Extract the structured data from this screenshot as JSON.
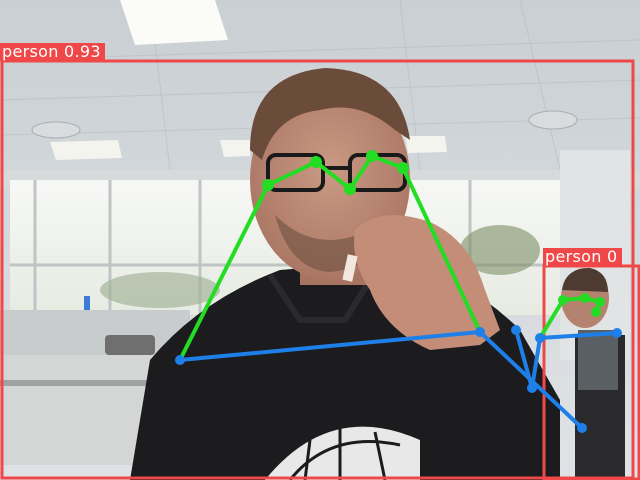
{
  "detections": [
    {
      "label": "person 0.93",
      "box_color": "#f04848",
      "keypoint_color": "#22dd22",
      "skeleton_upper_color": "#22dd22",
      "skeleton_lower_color": "#1f7fe8"
    },
    {
      "label": "person 0",
      "box_color": "#f04848",
      "keypoint_color": "#22dd22",
      "skeleton_upper_color": "#22dd22",
      "skeleton_lower_color": "#1f7fe8"
    }
  ],
  "scene": {
    "setting": "office room with ceiling lights and windows",
    "subject_shirt_color": "#1c1c1e",
    "wall_color": "#e9ecee",
    "window_glow": "#f6f7f5"
  }
}
